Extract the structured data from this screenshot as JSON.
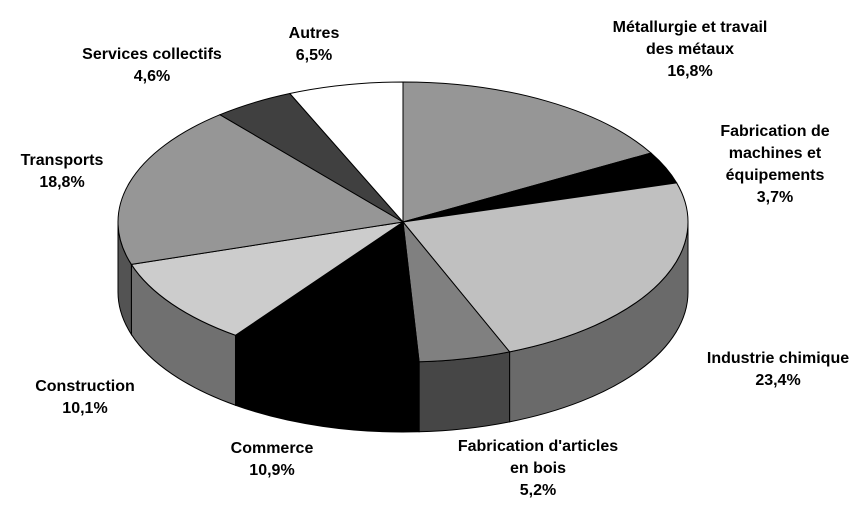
{
  "chart_data": {
    "type": "pie3d",
    "categories": [
      "Métallurgie et travail des métaux",
      "Fabrication de machines et équipements",
      "Industrie chimique",
      "Fabrication d'articles en bois",
      "Commerce",
      "Construction",
      "Transports",
      "Services collectifs",
      "Autres"
    ],
    "values": [
      16.8,
      3.7,
      23.4,
      5.2,
      10.9,
      10.1,
      18.8,
      4.6,
      6.5
    ],
    "value_labels": [
      "16,8%",
      "3,7%",
      "23,4%",
      "5,2%",
      "10,9%",
      "10,1%",
      "18,8%",
      "4,6%",
      "6,5%"
    ],
    "colors": [
      "#969696",
      "#000000",
      "#c0c0c0",
      "#808080",
      "#000000",
      "#cccccc",
      "#969696",
      "#404040",
      "#ffffff"
    ]
  }
}
